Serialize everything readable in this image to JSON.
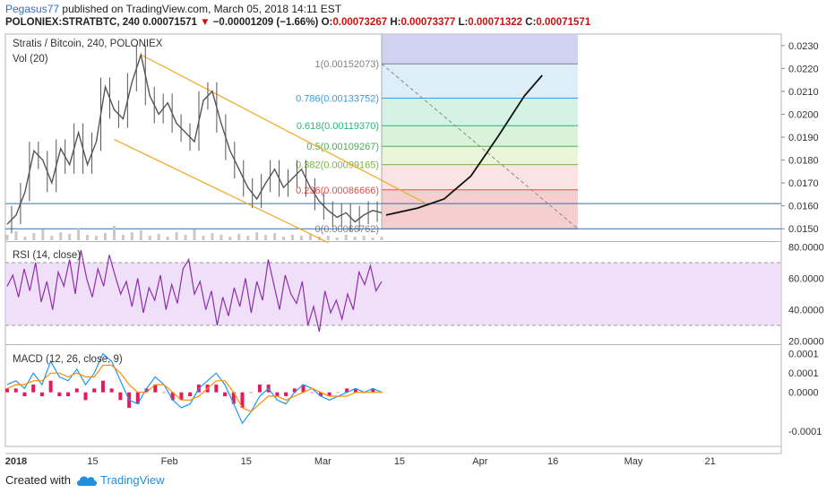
{
  "header": {
    "author": "Pegasus77",
    "published": "published on TradingView.com, March 05, 2018 14:11 EST",
    "symbol": "POLONIEX:STRATBTC, 240",
    "last": "0.00071571",
    "arrow": "▼",
    "change": "−0.00001209 (−1.66%)",
    "ohlc_o_label": "O:",
    "ohlc_o": "0.00073267",
    "ohlc_h_label": "H:",
    "ohlc_h": "0.00073377",
    "ohlc_l_label": "L:",
    "ohlc_l": "0.00071322",
    "ohlc_c_label": "C:",
    "ohlc_c": "0.00071571"
  },
  "footer": {
    "created": "Created with",
    "brand": "TradingView",
    "logo_icon": "tradingview-cloud-icon"
  },
  "colors": {
    "candle_up": "#555555",
    "candle_down": "#555555",
    "channel": "#f5a623",
    "hline": "#3a6fa8",
    "rsi": "#8e2fa8",
    "rsi_band": "#e9d2f7",
    "macd_line": "#2196f3",
    "signal_line": "#ff8c00",
    "hist": "#e6195b",
    "projection": "#111111"
  },
  "chart_data": [
    {
      "type": "line",
      "title": "Stratis / Bitcoin, 240, POLONIEX",
      "indicator_label": "Vol (20)",
      "x_ticks": [
        "2018",
        "15",
        "Feb",
        "15",
        "Mar",
        "15",
        "Apr",
        "16",
        "May",
        "21"
      ],
      "y_axis_ticks": [
        "0.0230",
        "0.0220",
        "0.0210",
        "0.0200",
        "0.0190",
        "0.0180",
        "0.0170",
        "0.0160",
        "0.0150"
      ],
      "ylim": [
        0.0145,
        0.0235
      ],
      "price_series": [
        {
          "x": 0,
          "y": 0.0152
        },
        {
          "x": 2,
          "y": 0.0156
        },
        {
          "x": 4,
          "y": 0.0166
        },
        {
          "x": 6,
          "y": 0.0184
        },
        {
          "x": 8,
          "y": 0.018
        },
        {
          "x": 10,
          "y": 0.017
        },
        {
          "x": 12,
          "y": 0.0185
        },
        {
          "x": 14,
          "y": 0.0178
        },
        {
          "x": 16,
          "y": 0.0192
        },
        {
          "x": 18,
          "y": 0.0178
        },
        {
          "x": 20,
          "y": 0.0188
        },
        {
          "x": 22,
          "y": 0.0212
        },
        {
          "x": 24,
          "y": 0.0202
        },
        {
          "x": 26,
          "y": 0.0198
        },
        {
          "x": 28,
          "y": 0.0214
        },
        {
          "x": 30,
          "y": 0.0226
        },
        {
          "x": 32,
          "y": 0.0208
        },
        {
          "x": 34,
          "y": 0.02
        },
        {
          "x": 36,
          "y": 0.0205
        },
        {
          "x": 38,
          "y": 0.0196
        },
        {
          "x": 40,
          "y": 0.0192
        },
        {
          "x": 42,
          "y": 0.0188
        },
        {
          "x": 44,
          "y": 0.0206
        },
        {
          "x": 46,
          "y": 0.021
        },
        {
          "x": 48,
          "y": 0.0196
        },
        {
          "x": 50,
          "y": 0.0184
        },
        {
          "x": 52,
          "y": 0.0176
        },
        {
          "x": 54,
          "y": 0.0168
        },
        {
          "x": 56,
          "y": 0.0163
        },
        {
          "x": 58,
          "y": 0.017
        },
        {
          "x": 60,
          "y": 0.0176
        },
        {
          "x": 62,
          "y": 0.0168
        },
        {
          "x": 64,
          "y": 0.0172
        },
        {
          "x": 66,
          "y": 0.0176
        },
        {
          "x": 68,
          "y": 0.0168
        },
        {
          "x": 70,
          "y": 0.0162
        },
        {
          "x": 72,
          "y": 0.0158
        },
        {
          "x": 74,
          "y": 0.0155
        },
        {
          "x": 76,
          "y": 0.0157
        },
        {
          "x": 78,
          "y": 0.0153
        },
        {
          "x": 80,
          "y": 0.0156
        },
        {
          "x": 82,
          "y": 0.0158
        },
        {
          "x": 84,
          "y": 0.0157
        }
      ],
      "horizontal_lines": [
        0.0161,
        0.015
      ],
      "channel_lines": [
        {
          "x1": 30,
          "y1": 0.0226,
          "x2": 94,
          "y2": 0.0161
        },
        {
          "x1": 24,
          "y1": 0.0189,
          "x2": 72,
          "y2": 0.0144
        }
      ],
      "fib_levels": [
        {
          "label": "1(0.00152073)",
          "value": 0.00152073,
          "y": 0.0222,
          "color": "#808080",
          "fill": "#e6e6e6"
        },
        {
          "label": "0.786(0.00133752)",
          "value": 0.00133752,
          "y": 0.0207,
          "color": "#3d9be0",
          "fill": "#d9ecf8"
        },
        {
          "label": "0.618(0.00119370)",
          "value": 0.0011937,
          "y": 0.0195,
          "color": "#2ab67a",
          "fill": "#d2f1e4"
        },
        {
          "label": "0.5(0.00109267)",
          "value": 0.00109267,
          "y": 0.0186,
          "color": "#4caf50",
          "fill": "#d6f1d6"
        },
        {
          "label": "0.382(0.00099165)",
          "value": 0.00099165,
          "y": 0.0178,
          "color": "#7cb342",
          "fill": "#e7f5d3"
        },
        {
          "label": "0.236(0.00086666)",
          "value": 0.00086666,
          "y": 0.0167,
          "color": "#e05050",
          "fill": "#f9e0e0"
        },
        {
          "label": "0(0.00066762)",
          "value": 0.00066762,
          "y": 0.015,
          "color": "#808080",
          "fill": "#f4caca"
        }
      ],
      "fib_top_band_color": "#c9c9f0",
      "fib_x_range": [
        84,
        128
      ],
      "diagonal_dashed": {
        "x1": 84,
        "y1": 0.0222,
        "x2": 128,
        "y2": 0.015
      },
      "projection_curve": [
        {
          "x": 85,
          "y": 0.0156
        },
        {
          "x": 92,
          "y": 0.0159
        },
        {
          "x": 98,
          "y": 0.0163
        },
        {
          "x": 104,
          "y": 0.0173
        },
        {
          "x": 110,
          "y": 0.019
        },
        {
          "x": 116,
          "y": 0.0208
        },
        {
          "x": 120,
          "y": 0.0217
        }
      ]
    },
    {
      "type": "line",
      "title": "RSI (14, close)",
      "y_axis_ticks": [
        "80.0000",
        "60.0000",
        "40.0000",
        "20.0000"
      ],
      "ylim": [
        18,
        82
      ],
      "bands": [
        70,
        30
      ],
      "series": [
        {
          "name": "RSI",
          "values": [
            55,
            62,
            48,
            66,
            52,
            70,
            45,
            58,
            40,
            64,
            55,
            72,
            50,
            78,
            60,
            48,
            66,
            55,
            75,
            62,
            50,
            58,
            42,
            60,
            38,
            54,
            46,
            62,
            40,
            56,
            44,
            66,
            72,
            50,
            58,
            40,
            52,
            30,
            48,
            36,
            54,
            42,
            60,
            38,
            58,
            46,
            72,
            56,
            40,
            62,
            50,
            44,
            58,
            30,
            42,
            26,
            52,
            38,
            46,
            34,
            50,
            40,
            64,
            56,
            68,
            52,
            58
          ]
        }
      ]
    },
    {
      "type": "line",
      "title": "MACD (12, 26, close, 9)",
      "y_axis_ticks": [
        "0.0001",
        "0.0001",
        "0.0000",
        "-0.0001"
      ],
      "ylim": [
        -0.00014,
        0.00012
      ],
      "series": [
        {
          "name": "MACD",
          "values": [
            2e-05,
            3e-05,
            1e-05,
            5e-05,
            2e-05,
            8e-05,
            4e-05,
            3e-05,
            6e-05,
            2e-05,
            5e-05,
            0.0001,
            8e-05,
            3e-05,
            -2e-05,
            -3e-05,
            1e-05,
            4e-05,
            2e-05,
            -2e-05,
            -4e-05,
            -3e-05,
            1e-05,
            3e-05,
            5e-05,
            2e-05,
            -3e-05,
            -8e-05,
            -5e-05,
            -1e-05,
            1e-05,
            -2e-05,
            -3e-05,
            0.0,
            2e-05,
            1e-05,
            -1e-05,
            -2e-05,
            -1e-05,
            0.0,
            1e-05,
            0.0,
            1e-05,
            0.0
          ]
        },
        {
          "name": "Signal",
          "values": [
            1e-05,
            2e-05,
            2e-05,
            3e-05,
            3e-05,
            5e-05,
            5e-05,
            4e-05,
            5e-05,
            4e-05,
            4e-05,
            7e-05,
            7e-05,
            5e-05,
            2e-05,
            0.0,
            0.0,
            2e-05,
            2e-05,
            0.0,
            -2e-05,
            -2e-05,
            -1e-05,
            1e-05,
            3e-05,
            3e-05,
            0.0,
            -4e-05,
            -5e-05,
            -3e-05,
            -1e-05,
            -1e-05,
            -2e-05,
            -1e-05,
            0.0,
            1e-05,
            0.0,
            -1e-05,
            -1e-05,
            -1e-05,
            0.0,
            0.0,
            0.0,
            0.0
          ]
        }
      ],
      "histogram": [
        1e-05,
        1e-05,
        -1e-05,
        2e-05,
        -1e-05,
        3e-05,
        -1e-05,
        -1e-05,
        1e-05,
        -2e-05,
        1e-05,
        3e-05,
        1e-05,
        -2e-05,
        -4e-05,
        -3e-05,
        1e-05,
        2e-05,
        0.0,
        -2e-05,
        -2e-05,
        -1e-05,
        2e-05,
        2e-05,
        2e-05,
        -1e-05,
        -3e-05,
        -4e-05,
        0.0,
        2e-05,
        2e-05,
        -1e-05,
        -1e-05,
        1e-05,
        2e-05,
        0.0,
        -1e-05,
        -1e-05,
        0.0,
        1e-05,
        1e-05,
        0.0,
        1e-05,
        0.0
      ]
    }
  ]
}
